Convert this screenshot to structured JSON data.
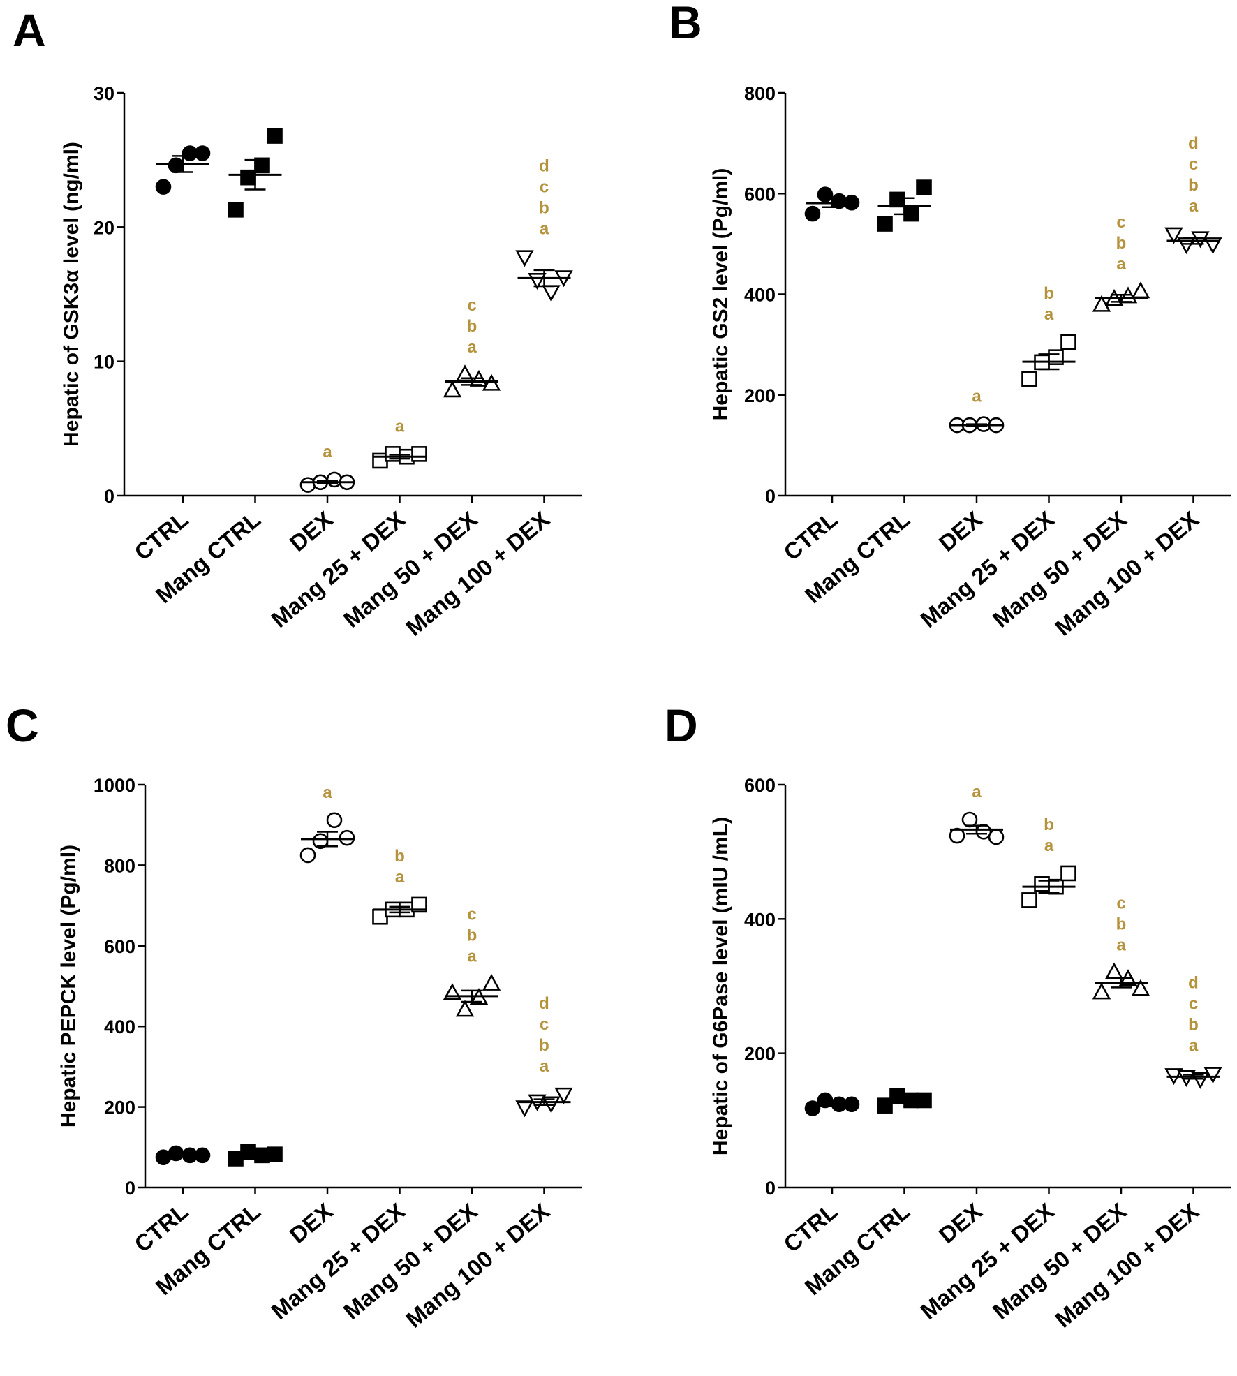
{
  "legend": {
    "colors": {
      "axis": "#000000",
      "filled": "#000000",
      "open": "#ffffff",
      "significance": "#b5923c"
    }
  },
  "chart_data": [
    {
      "panel": "A",
      "type": "scatter",
      "ylabel": "Hepatic of GSK3α level (ng/ml)",
      "ylim": [
        0,
        30
      ],
      "yticks": [
        0,
        10,
        20,
        30
      ],
      "categories": [
        "CTRL",
        "Mang CTRL",
        "DEX",
        "Mang 25 + DEX",
        "Mang 50 + DEX",
        "Mang 100 + DEX"
      ],
      "series": [
        {
          "name": "CTRL",
          "marker": "circle",
          "filled": true,
          "points": [
            23.0,
            24.6,
            25.5,
            25.5
          ],
          "mean": 24.7,
          "sem": 0.6,
          "letters": []
        },
        {
          "name": "Mang CTRL",
          "marker": "square",
          "filled": true,
          "points": [
            21.3,
            23.7,
            24.6,
            26.8
          ],
          "mean": 23.9,
          "sem": 1.1,
          "letters": []
        },
        {
          "name": "DEX",
          "marker": "circle",
          "filled": false,
          "points": [
            0.8,
            1.0,
            1.2,
            1.0
          ],
          "mean": 1.0,
          "sem": 0.1,
          "letters": [
            "a"
          ]
        },
        {
          "name": "Mang 25 + DEX",
          "marker": "square",
          "filled": false,
          "points": [
            2.6,
            3.1,
            2.9,
            3.1
          ],
          "mean": 2.9,
          "sem": 0.15,
          "letters": [
            "a"
          ]
        },
        {
          "name": "Mang 50 + DEX",
          "marker": "triangle-up",
          "filled": false,
          "points": [
            7.8,
            9.0,
            8.6,
            8.3
          ],
          "mean": 8.5,
          "sem": 0.25,
          "letters": [
            "c",
            "b",
            "a"
          ]
        },
        {
          "name": "Mang 100 + DEX",
          "marker": "triangle-down",
          "filled": false,
          "points": [
            17.8,
            16.1,
            15.2,
            16.3
          ],
          "mean": 16.2,
          "sem": 0.6,
          "letters": [
            "d",
            "c",
            "b",
            "a"
          ]
        }
      ]
    },
    {
      "panel": "B",
      "type": "scatter",
      "ylabel": "Hepatic GS2 level (Pg/ml)",
      "ylim": [
        0,
        800
      ],
      "yticks": [
        0,
        200,
        400,
        600,
        800
      ],
      "categories": [
        "CTRL",
        "Mang CTRL",
        "DEX",
        "Mang 25 + DEX",
        "Mang 50 + DEX",
        "Mang 100 + DEX"
      ],
      "series": [
        {
          "name": "CTRL",
          "marker": "circle",
          "filled": true,
          "points": [
            560,
            598,
            585,
            582
          ],
          "mean": 581,
          "sem": 8,
          "letters": []
        },
        {
          "name": "Mang CTRL",
          "marker": "square",
          "filled": true,
          "points": [
            540,
            588,
            560,
            612
          ],
          "mean": 575,
          "sem": 16,
          "letters": []
        },
        {
          "name": "DEX",
          "marker": "circle",
          "filled": false,
          "points": [
            140,
            140,
            142,
            140
          ],
          "mean": 140,
          "sem": 2,
          "letters": [
            "a"
          ]
        },
        {
          "name": "Mang 25 + DEX",
          "marker": "square",
          "filled": false,
          "points": [
            232,
            265,
            275,
            305
          ],
          "mean": 266,
          "sem": 15,
          "letters": [
            "b",
            "a"
          ]
        },
        {
          "name": "Mang 50 + DEX",
          "marker": "triangle-up",
          "filled": false,
          "points": [
            378,
            390,
            395,
            405
          ],
          "mean": 392,
          "sem": 7,
          "letters": [
            "c",
            "b",
            "a"
          ]
        },
        {
          "name": "Mang 100 + DEX",
          "marker": "triangle-down",
          "filled": false,
          "points": [
            520,
            500,
            512,
            500
          ],
          "mean": 506,
          "sem": 6,
          "letters": [
            "d",
            "c",
            "b",
            "a"
          ]
        }
      ]
    },
    {
      "panel": "C",
      "type": "scatter",
      "ylabel": "Hepatic PEPCK level (Pg/ml)",
      "ylim": [
        0,
        1000
      ],
      "yticks": [
        0,
        200,
        400,
        600,
        800,
        1000
      ],
      "categories": [
        "CTRL",
        "Mang CTRL",
        "DEX",
        "Mang 25 + DEX",
        "Mang 50 + DEX",
        "Mang 100 + DEX"
      ],
      "series": [
        {
          "name": "CTRL",
          "marker": "circle",
          "filled": true,
          "points": [
            75,
            85,
            80,
            80
          ],
          "mean": 80,
          "sem": 3,
          "letters": []
        },
        {
          "name": "Mang CTRL",
          "marker": "square",
          "filled": true,
          "points": [
            72,
            88,
            80,
            82
          ],
          "mean": 80,
          "sem": 4,
          "letters": []
        },
        {
          "name": "DEX",
          "marker": "circle",
          "filled": false,
          "points": [
            825,
            860,
            912,
            868
          ],
          "mean": 865,
          "sem": 18,
          "letters": [
            "a"
          ]
        },
        {
          "name": "Mang 25 + DEX",
          "marker": "square",
          "filled": false,
          "points": [
            672,
            690,
            690,
            702
          ],
          "mean": 690,
          "sem": 7,
          "letters": [
            "b",
            "a"
          ]
        },
        {
          "name": "Mang 50 + DEX",
          "marker": "triangle-up",
          "filled": false,
          "points": [
            482,
            440,
            470,
            505
          ],
          "mean": 475,
          "sem": 14,
          "letters": [
            "c",
            "b",
            "a"
          ]
        },
        {
          "name": "Mang 100 + DEX",
          "marker": "triangle-down",
          "filled": false,
          "points": [
            200,
            215,
            210,
            232
          ],
          "mean": 212,
          "sem": 7,
          "letters": [
            "d",
            "c",
            "b",
            "a"
          ]
        }
      ]
    },
    {
      "panel": "D",
      "type": "scatter",
      "ylabel": "Hepatic of G6Pase level (mIU /mL)",
      "ylim": [
        0,
        600
      ],
      "yticks": [
        0,
        200,
        400,
        600
      ],
      "categories": [
        "CTRL",
        "Mang CTRL",
        "DEX",
        "Mang 25 + DEX",
        "Mang 50 + DEX",
        "Mang 100 + DEX"
      ],
      "series": [
        {
          "name": "CTRL",
          "marker": "circle",
          "filled": true,
          "points": [
            118,
            130,
            124,
            124
          ],
          "mean": 124,
          "sem": 3,
          "letters": []
        },
        {
          "name": "Mang CTRL",
          "marker": "square",
          "filled": true,
          "points": [
            122,
            136,
            130,
            130
          ],
          "mean": 130,
          "sem": 3,
          "letters": []
        },
        {
          "name": "DEX",
          "marker": "circle",
          "filled": false,
          "points": [
            524,
            548,
            530,
            522
          ],
          "mean": 533,
          "sem": 6,
          "letters": [
            "a"
          ]
        },
        {
          "name": "Mang 25 + DEX",
          "marker": "square",
          "filled": false,
          "points": [
            428,
            452,
            448,
            468
          ],
          "mean": 448,
          "sem": 9,
          "letters": [
            "b",
            "a"
          ]
        },
        {
          "name": "Mang 50 + DEX",
          "marker": "triangle-up",
          "filled": false,
          "points": [
            290,
            320,
            310,
            295
          ],
          "mean": 305,
          "sem": 7,
          "letters": [
            "c",
            "b",
            "a"
          ]
        },
        {
          "name": "Mang 100 + DEX",
          "marker": "triangle-down",
          "filled": false,
          "points": [
            168,
            165,
            162,
            170
          ],
          "mean": 165,
          "sem": 3,
          "letters": [
            "d",
            "c",
            "b",
            "a"
          ]
        }
      ]
    }
  ]
}
